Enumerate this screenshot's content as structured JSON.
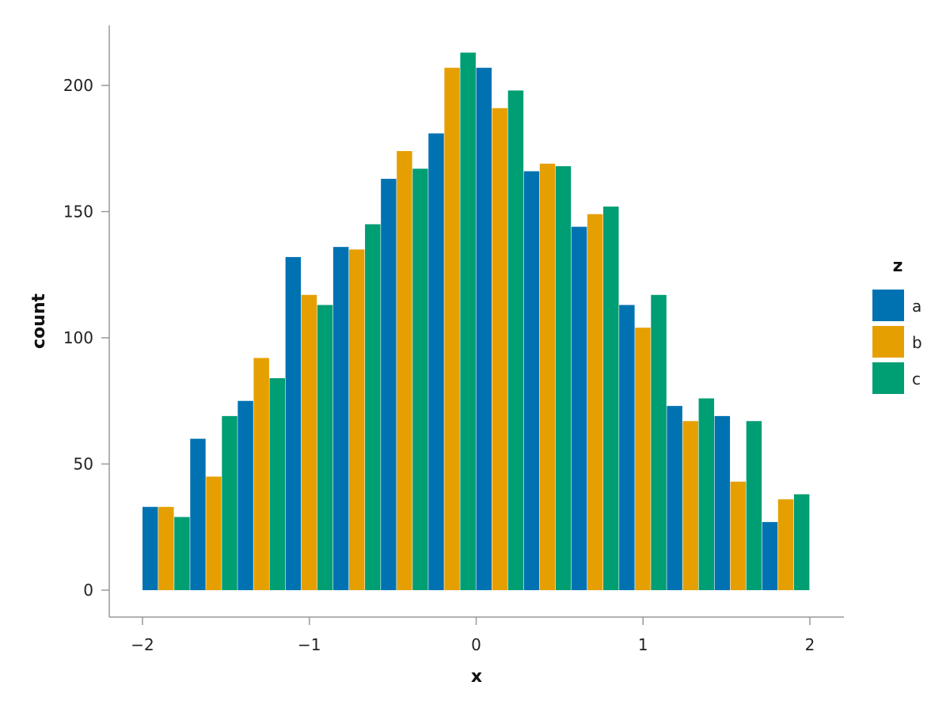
{
  "chart_data": {
    "type": "bar",
    "xlabel": "x",
    "ylabel": "count",
    "legend_title": "z",
    "legend_position": "right",
    "grid": false,
    "xlim": [
      -2.2,
      2.2
    ],
    "ylim": [
      -10,
      225
    ],
    "x_ticks": [
      -2,
      -1,
      0,
      1,
      2
    ],
    "x_tick_labels": [
      "−2",
      "−1",
      "0",
      "1",
      "2"
    ],
    "y_ticks": [
      0,
      50,
      100,
      150,
      200
    ],
    "y_tick_labels": [
      "0",
      "50",
      "100",
      "150",
      "200"
    ],
    "bin_edges": [
      -2.0,
      -1.714,
      -1.429,
      -1.143,
      -0.857,
      -0.571,
      -0.286,
      0.0,
      0.286,
      0.571,
      0.857,
      1.143,
      1.429,
      1.714,
      2.0
    ],
    "series": [
      {
        "name": "a",
        "color": "#0072B2",
        "values": [
          33,
          60,
          75,
          132,
          136,
          163,
          181,
          207,
          166,
          144,
          113,
          73,
          69,
          27
        ]
      },
      {
        "name": "b",
        "color": "#E69F00",
        "values": [
          33,
          45,
          92,
          117,
          135,
          174,
          207,
          191,
          169,
          149,
          104,
          67,
          43,
          36
        ]
      },
      {
        "name": "c",
        "color": "#009E73",
        "values": [
          29,
          69,
          84,
          113,
          145,
          167,
          213,
          198,
          168,
          152,
          117,
          76,
          67,
          38
        ]
      }
    ]
  }
}
